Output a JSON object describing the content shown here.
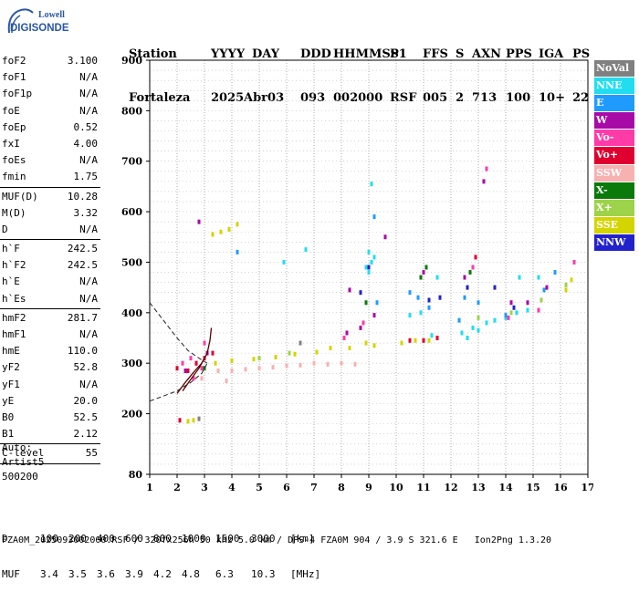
{
  "logo": {
    "line1": "Lowell",
    "line2": "DIGISONDE"
  },
  "header": {
    "labels": [
      "Station",
      "YYYY",
      "DAY",
      "DDD",
      "HHMMSS",
      "P1",
      "FFS",
      "S",
      "AXN",
      "PPS",
      "IGA",
      "PS"
    ],
    "values": [
      "Fortaleza",
      "2025",
      "Abr03",
      "093",
      "002000",
      "RSF",
      "005",
      "2",
      "713",
      "100",
      "10+",
      "22"
    ]
  },
  "params": {
    "group1": [
      {
        "name": "foF2",
        "value": "3.100"
      },
      {
        "name": "foF1",
        "value": "N/A"
      },
      {
        "name": "foF1p",
        "value": "N/A"
      },
      {
        "name": "foE",
        "value": "N/A"
      },
      {
        "name": "foEp",
        "value": "0.52"
      },
      {
        "name": "fxI",
        "value": "4.00"
      },
      {
        "name": "foEs",
        "value": "N/A"
      },
      {
        "name": "fmin",
        "value": "1.75"
      }
    ],
    "group2": [
      {
        "name": "MUF(D)",
        "value": "10.28"
      },
      {
        "name": "M(D)",
        "value": "3.32"
      },
      {
        "name": "D",
        "value": "N/A"
      }
    ],
    "group3": [
      {
        "name": "h`F",
        "value": "242.5"
      },
      {
        "name": "h`F2",
        "value": "242.5"
      },
      {
        "name": "h`E",
        "value": "N/A"
      },
      {
        "name": "h`Es",
        "value": "N/A"
      }
    ],
    "group4": [
      {
        "name": "hmF2",
        "value": "281.7"
      },
      {
        "name": "hmF1",
        "value": "N/A"
      },
      {
        "name": "hmE",
        "value": "110.0"
      },
      {
        "name": "yF2",
        "value": "52.8"
      },
      {
        "name": "yF1",
        "value": "N/A"
      },
      {
        "name": "yE",
        "value": "20.0"
      },
      {
        "name": "B0",
        "value": "52.5"
      },
      {
        "name": "B1",
        "value": "2.12"
      }
    ],
    "group5": [
      {
        "name": "C-level",
        "value": "55"
      }
    ]
  },
  "auto": {
    "line1": "Auto:",
    "line2": "Artist5",
    "line3": "500200"
  },
  "legend": [
    {
      "label": "NoVal",
      "color": "#808080"
    },
    {
      "label": "NNE",
      "color": "#22ddf0"
    },
    {
      "label": "E",
      "color": "#1f9bff"
    },
    {
      "label": "W",
      "color": "#a80aa8"
    },
    {
      "label": "Vo-",
      "color": "#ff3ba8"
    },
    {
      "label": "Vo+",
      "color": "#e00030"
    },
    {
      "label": "SSW",
      "color": "#f7b1b1"
    },
    {
      "label": "X-",
      "color": "#0a7a0a"
    },
    {
      "label": "X+",
      "color": "#9dd34a"
    },
    {
      "label": "SSE",
      "color": "#d4d400"
    },
    {
      "label": "NNW",
      "color": "#2222cc"
    }
  ],
  "chart_data": {
    "type": "scatter",
    "xlim": [
      1,
      17
    ],
    "ylim": [
      80,
      900
    ],
    "x_ticks": [
      1,
      2,
      3,
      4,
      5,
      6,
      7,
      8,
      9,
      10,
      11,
      12,
      13,
      14,
      15,
      16,
      17
    ],
    "y_ticks": [
      80,
      200,
      300,
      400,
      500,
      600,
      700,
      800,
      900
    ],
    "grid": true,
    "series": [
      {
        "name": "NNE",
        "points": [
          [
            9.0,
            480
          ],
          [
            9.1,
            500
          ],
          [
            9.0,
            520
          ],
          [
            9.2,
            510
          ],
          [
            12.4,
            360
          ],
          [
            12.6,
            350
          ],
          [
            12.8,
            370
          ],
          [
            13.0,
            365
          ],
          [
            13.3,
            380
          ],
          [
            13.6,
            385
          ],
          [
            14.0,
            390
          ],
          [
            14.4,
            400
          ],
          [
            14.8,
            405
          ],
          [
            8.9,
            490
          ],
          [
            11.3,
            355
          ],
          [
            6.7,
            525
          ],
          [
            9.1,
            655
          ],
          [
            5.9,
            500
          ],
          [
            10.5,
            395
          ],
          [
            10.9,
            400
          ],
          [
            11.5,
            470
          ],
          [
            14.5,
            470
          ],
          [
            15.2,
            470
          ]
        ]
      },
      {
        "name": "E",
        "points": [
          [
            10.5,
            440
          ],
          [
            10.8,
            430
          ],
          [
            11.2,
            410
          ],
          [
            9.3,
            420
          ],
          [
            12.5,
            430
          ],
          [
            12.3,
            385
          ],
          [
            13.0,
            420
          ],
          [
            14.0,
            395
          ],
          [
            15.4,
            445
          ],
          [
            4.2,
            520
          ],
          [
            9.2,
            590
          ],
          [
            15.8,
            480
          ]
        ]
      },
      {
        "name": "W",
        "points": [
          [
            2.3,
            285
          ],
          [
            2.7,
            300
          ],
          [
            3.1,
            320
          ],
          [
            8.2,
            360
          ],
          [
            8.7,
            370
          ],
          [
            9.2,
            395
          ],
          [
            11.0,
            480
          ],
          [
            12.5,
            470
          ],
          [
            13.2,
            660
          ],
          [
            14.2,
            420
          ],
          [
            15.5,
            450
          ],
          [
            2.8,
            580
          ],
          [
            8.3,
            445
          ],
          [
            9.6,
            550
          ],
          [
            14.8,
            420
          ]
        ]
      },
      {
        "name": "Vo-",
        "points": [
          [
            2.2,
            300
          ],
          [
            2.5,
            310
          ],
          [
            2.9,
            290
          ],
          [
            3.0,
            340
          ],
          [
            8.1,
            350
          ],
          [
            8.8,
            380
          ],
          [
            12.8,
            490
          ],
          [
            13.3,
            685
          ],
          [
            15.2,
            405
          ],
          [
            14.1,
            390
          ],
          [
            16.5,
            500
          ],
          [
            2.6,
            270
          ]
        ]
      },
      {
        "name": "Vo+",
        "points": [
          [
            2.0,
            290
          ],
          [
            2.4,
            285
          ],
          [
            2.7,
            300
          ],
          [
            3.0,
            310
          ],
          [
            2.1,
            187
          ],
          [
            10.5,
            345
          ],
          [
            11.0,
            345
          ],
          [
            11.5,
            350
          ],
          [
            3.3,
            320
          ],
          [
            12.9,
            510
          ]
        ]
      },
      {
        "name": "SSW",
        "points": [
          [
            3.5,
            285
          ],
          [
            4.0,
            285
          ],
          [
            4.5,
            288
          ],
          [
            5.0,
            290
          ],
          [
            5.5,
            292
          ],
          [
            6.0,
            295
          ],
          [
            6.5,
            296
          ],
          [
            7.0,
            300
          ],
          [
            7.5,
            298
          ],
          [
            8.0,
            300
          ],
          [
            8.5,
            298
          ],
          [
            3.8,
            265
          ],
          [
            2.9,
            270
          ]
        ]
      },
      {
        "name": "X-",
        "points": [
          [
            10.9,
            470
          ],
          [
            11.1,
            490
          ],
          [
            12.7,
            480
          ],
          [
            8.9,
            420
          ],
          [
            3.0,
            290
          ]
        ]
      },
      {
        "name": "X+",
        "points": [
          [
            13.0,
            390
          ],
          [
            14.2,
            400
          ],
          [
            15.3,
            425
          ],
          [
            16.2,
            455
          ],
          [
            5.0,
            310
          ],
          [
            6.1,
            320
          ]
        ]
      },
      {
        "name": "SSE",
        "points": [
          [
            3.3,
            555
          ],
          [
            3.6,
            560
          ],
          [
            3.9,
            565
          ],
          [
            4.2,
            575
          ],
          [
            2.4,
            185
          ],
          [
            2.6,
            187
          ],
          [
            3.4,
            300
          ],
          [
            4.0,
            305
          ],
          [
            4.8,
            308
          ],
          [
            5.6,
            312
          ],
          [
            6.3,
            318
          ],
          [
            7.1,
            322
          ],
          [
            7.6,
            330
          ],
          [
            8.3,
            330
          ],
          [
            8.9,
            340
          ],
          [
            9.2,
            335
          ],
          [
            10.2,
            340
          ],
          [
            10.7,
            345
          ],
          [
            11.2,
            345
          ],
          [
            16.2,
            445
          ],
          [
            16.4,
            465
          ]
        ]
      },
      {
        "name": "NNW",
        "points": [
          [
            11.2,
            425
          ],
          [
            11.6,
            430
          ],
          [
            12.6,
            450
          ],
          [
            13.6,
            450
          ],
          [
            14.3,
            410
          ],
          [
            9.0,
            490
          ],
          [
            8.7,
            440
          ]
        ]
      },
      {
        "name": "NoVal",
        "points": [
          [
            2.8,
            190
          ],
          [
            6.5,
            340
          ]
        ]
      }
    ],
    "profile_curves": [
      {
        "name": "dashed-upper",
        "points": [
          [
            1.0,
            420
          ],
          [
            1.5,
            385
          ],
          [
            2.0,
            350
          ],
          [
            2.4,
            325
          ],
          [
            2.8,
            310
          ],
          [
            3.1,
            300
          ]
        ]
      },
      {
        "name": "dashed-lower",
        "points": [
          [
            1.0,
            225
          ],
          [
            1.5,
            235
          ],
          [
            2.0,
            245
          ],
          [
            2.5,
            262
          ],
          [
            2.9,
            280
          ],
          [
            3.1,
            300
          ]
        ]
      },
      {
        "name": "trace-1",
        "points": [
          [
            2.0,
            240
          ],
          [
            2.3,
            262
          ],
          [
            2.6,
            282
          ],
          [
            2.9,
            300
          ],
          [
            3.1,
            320
          ],
          [
            3.2,
            345
          ],
          [
            3.25,
            370
          ]
        ]
      },
      {
        "name": "trace-2",
        "points": [
          [
            2.2,
            245
          ],
          [
            2.5,
            268
          ],
          [
            2.8,
            290
          ],
          [
            3.0,
            310
          ]
        ]
      }
    ]
  },
  "footer": {
    "row1_label": "D",
    "row1_values": [
      "100",
      "200",
      "400",
      "600",
      "800",
      "1000",
      "1500",
      "3000"
    ],
    "row1_unit": "[km]",
    "row2_label": "MUF",
    "row2_values": [
      "3.4",
      "3.5",
      "3.6",
      "3.9",
      "4.2",
      "4.8",
      "6.3",
      "10.3"
    ],
    "row2_unit": "[MHz]",
    "source": "FZA0M_2025093002000.RSF / 320fx256h 50 kHz 5.0 km / DPS-4 FZA0M 904 / 3.9 S 321.6 E   Ion2Png 1.3.20"
  }
}
